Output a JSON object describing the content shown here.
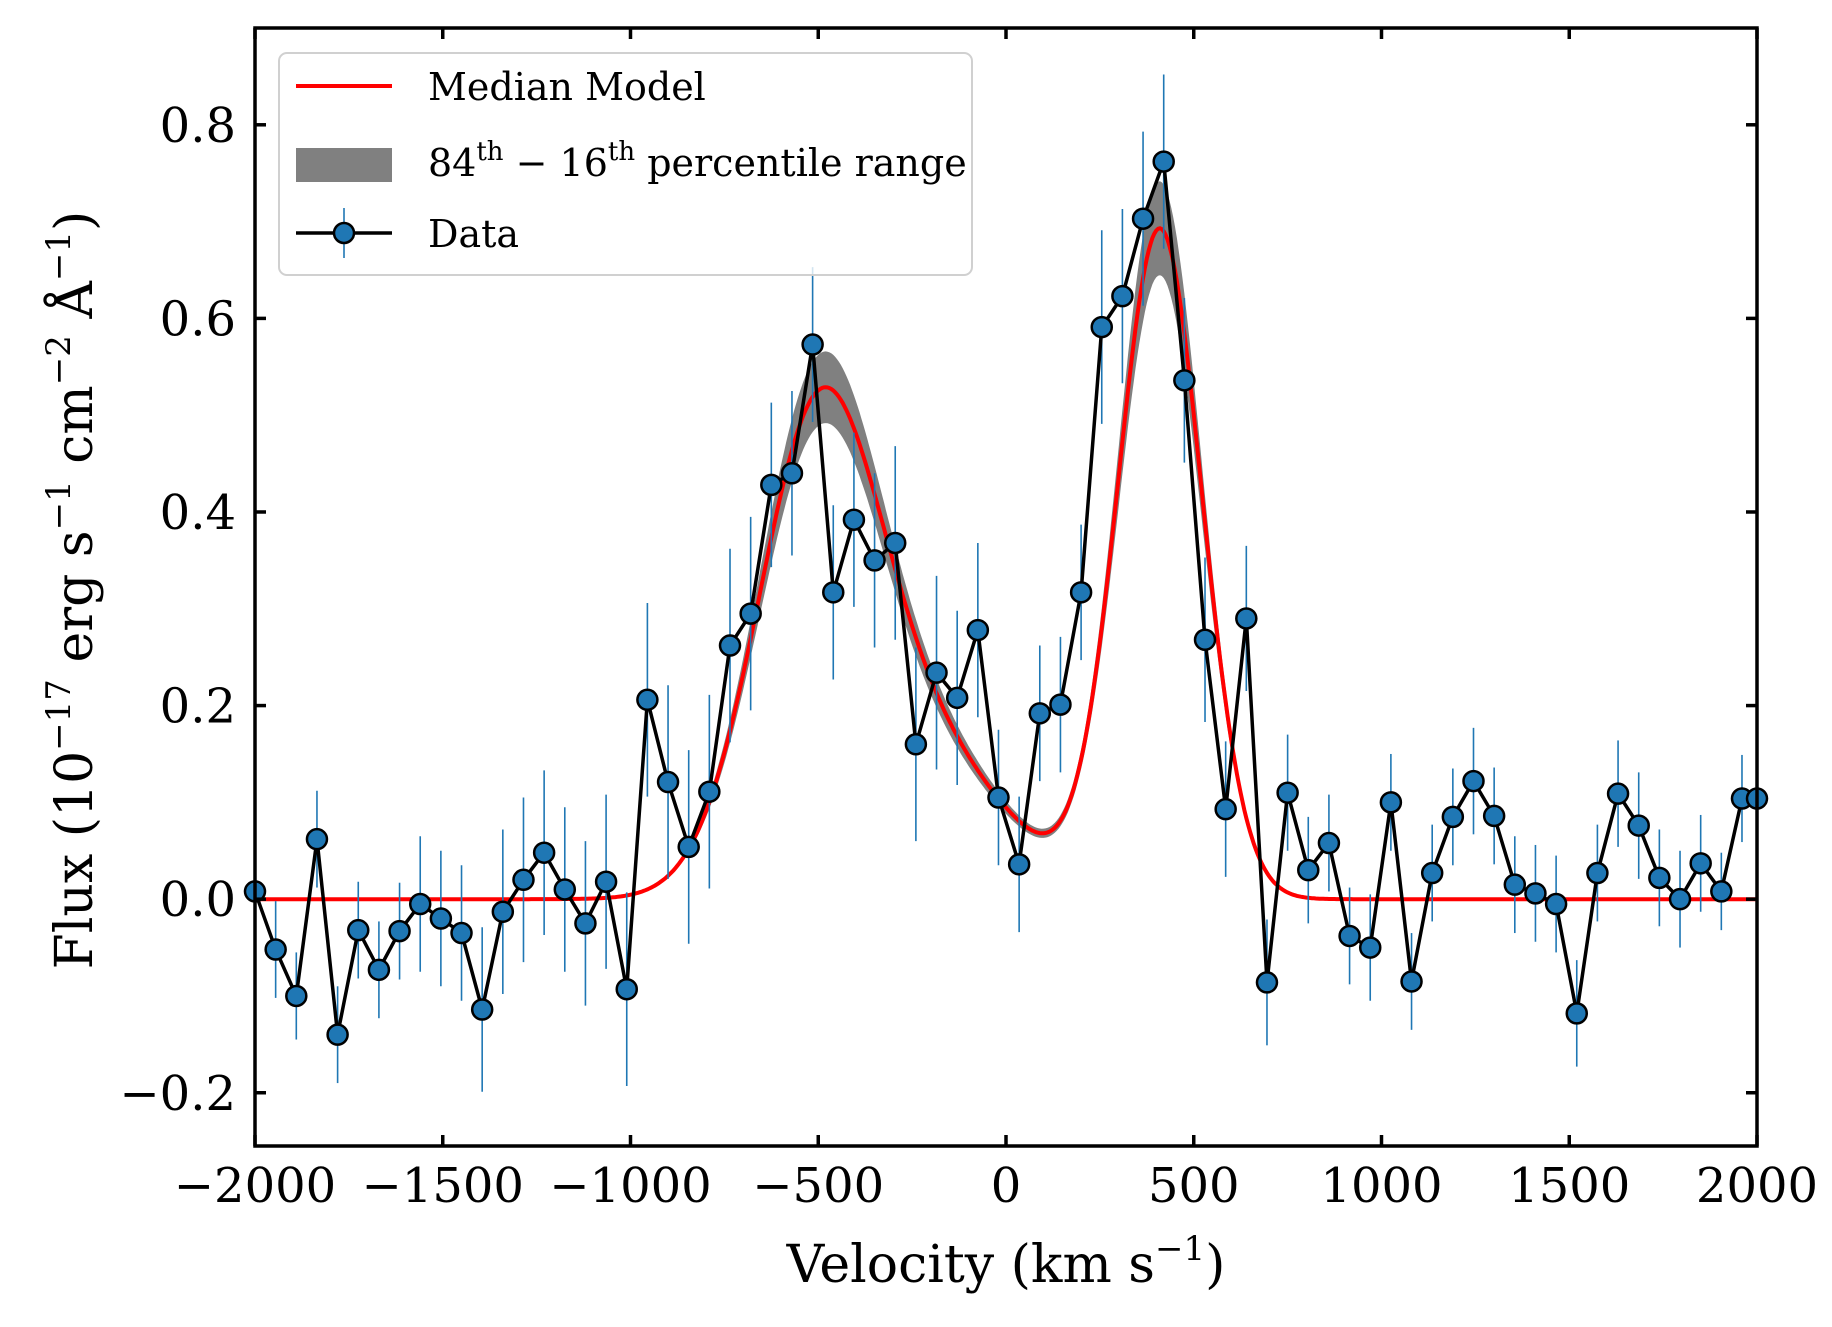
{
  "chart_data": {
    "type": "line",
    "title": "",
    "xlabel": "Velocity (km s",
    "xlabel_sup": "−1",
    "xlabel_close": ")",
    "ylabel": "Flux (10",
    "ylabel_sup1": "−17",
    "ylabel_mid1": " erg s",
    "ylabel_sup2": "−1",
    "ylabel_mid2": " cm",
    "ylabel_sup3": "−2",
    "ylabel_mid3": " Å",
    "ylabel_sup4": "−1",
    "ylabel_close": ")",
    "xlim": [
      -2000,
      2000
    ],
    "ylim": [
      -0.255,
      0.9
    ],
    "xticks": [
      -2000,
      -1500,
      -1000,
      -500,
      0,
      500,
      1000,
      1500,
      2000
    ],
    "xtick_labels": [
      "−2000",
      "−1500",
      "−1000",
      "−500",
      "0",
      "500",
      "1000",
      "1500",
      "2000"
    ],
    "yticks": [
      -0.2,
      0.0,
      0.2,
      0.4,
      0.6,
      0.8
    ],
    "ytick_labels": [
      "−0.2",
      "0.0",
      "0.2",
      "0.4",
      "0.6",
      "0.8"
    ],
    "legend": {
      "position": "top-left",
      "entries": [
        {
          "label": "Median Model",
          "kind": "line"
        },
        {
          "label": "84",
          "sup1": "th",
          "mid": " − 16",
          "sup2": "th",
          "tail": " percentile range",
          "kind": "band"
        },
        {
          "label": "Data",
          "kind": "marker"
        }
      ]
    },
    "model": {
      "name": "Median Model",
      "color": "#ff0000",
      "components": [
        {
          "amplitude": 0.435,
          "center": -505,
          "sigma": 160
        },
        {
          "amplitude": 0.69,
          "center": 410,
          "sigma": 112
        },
        {
          "amplitude": 0.16,
          "center": -250,
          "sigma": 235
        }
      ],
      "band_halfwidth_fraction": 0.07,
      "band_color": "#808080"
    },
    "series": [
      {
        "name": "Data",
        "marker_color": "#1f77b4",
        "line_color": "#000000",
        "errorbar_color": "#1f77b4",
        "x": [
          -2000,
          -1945,
          -1890,
          -1835,
          -1780,
          -1725,
          -1670,
          -1615,
          -1560,
          -1505,
          -1450,
          -1395,
          -1340,
          -1285,
          -1230,
          -1175,
          -1120,
          -1065,
          -1010,
          -955,
          -900,
          -845,
          -790,
          -735,
          -680,
          -625,
          -570,
          -515,
          -460,
          -405,
          -350,
          -295,
          -240,
          -185,
          -130,
          -75,
          -20,
          35,
          90,
          145,
          200,
          255,
          310,
          365,
          420,
          475,
          530,
          585,
          640,
          695,
          750,
          805,
          860,
          915,
          970,
          1025,
          1080,
          1135,
          1190,
          1245,
          1300,
          1355,
          1410,
          1465,
          1520,
          1575,
          1630,
          1685,
          1740,
          1795,
          1850,
          1905,
          1960,
          2000
        ],
        "y": [
          0.008,
          -0.052,
          -0.1,
          0.062,
          -0.14,
          -0.032,
          -0.073,
          -0.033,
          -0.005,
          -0.02,
          -0.035,
          -0.114,
          -0.013,
          0.02,
          0.048,
          0.01,
          -0.025,
          0.018,
          -0.093,
          0.206,
          0.121,
          0.054,
          0.111,
          0.262,
          0.295,
          0.428,
          0.44,
          0.573,
          0.317,
          0.392,
          0.35,
          0.368,
          0.16,
          0.234,
          0.208,
          0.278,
          0.105,
          0.036,
          0.192,
          0.201,
          0.317,
          0.591,
          0.623,
          0.703,
          0.762,
          0.536,
          0.268,
          0.093,
          0.29,
          -0.086,
          0.11,
          0.03,
          0.058,
          -0.038,
          -0.05,
          0.1,
          -0.085,
          0.027,
          0.085,
          0.122,
          0.086,
          0.015,
          0.006,
          -0.005,
          -0.118,
          0.027,
          0.109,
          0.076,
          0.022,
          0.0,
          0.037,
          0.008,
          0.104,
          0.104
        ],
        "yerr": [
          0.05,
          0.05,
          0.045,
          0.05,
          0.05,
          0.05,
          0.05,
          0.05,
          0.07,
          0.07,
          0.07,
          0.085,
          0.085,
          0.085,
          0.085,
          0.085,
          0.085,
          0.09,
          0.1,
          0.1,
          0.1,
          0.1,
          0.1,
          0.1,
          0.1,
          0.085,
          0.085,
          0.08,
          0.09,
          0.09,
          0.09,
          0.1,
          0.1,
          0.1,
          0.09,
          0.09,
          0.07,
          0.07,
          0.07,
          0.07,
          0.07,
          0.1,
          0.09,
          0.09,
          0.09,
          0.085,
          0.085,
          0.07,
          0.075,
          0.065,
          0.06,
          0.055,
          0.05,
          0.05,
          0.055,
          0.05,
          0.05,
          0.05,
          0.05,
          0.055,
          0.05,
          0.05,
          0.05,
          0.05,
          0.055,
          0.05,
          0.055,
          0.055,
          0.05,
          0.05,
          0.05,
          0.04,
          0.045,
          0.045
        ]
      }
    ]
  }
}
